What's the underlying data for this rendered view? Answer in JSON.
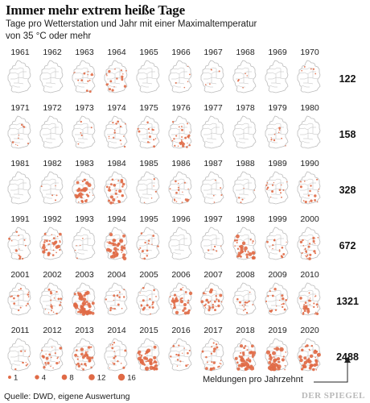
{
  "title": "Immer mehr extrem heiße Tage",
  "subtitle": "Tage pro Wetterstation und Jahr mit einer Maximaltemperatur von 35 °C oder mehr",
  "source": "Quelle: DWD, eigene Auswertung",
  "brand": "DER SPIEGEL",
  "decade_caption": "Meldungen pro Jahrzehnt",
  "colors": {
    "dot": "#e06a46",
    "map_fill": "#ffffff",
    "map_border": "#bcbcbc",
    "text": "#222222"
  },
  "chart_data": {
    "type": "small-multiples-dot-map",
    "legend": {
      "sizes": [
        1,
        4,
        8,
        12,
        16
      ]
    },
    "decades": [
      {
        "years": [
          "1961",
          "1962",
          "1963",
          "1964",
          "1965",
          "1966",
          "1967",
          "1968",
          "1969",
          "1970"
        ],
        "total": 122
      },
      {
        "years": [
          "1971",
          "1972",
          "1973",
          "1974",
          "1975",
          "1976",
          "1977",
          "1978",
          "1979",
          "1980"
        ],
        "total": 158
      },
      {
        "years": [
          "1981",
          "1982",
          "1983",
          "1984",
          "1985",
          "1986",
          "1987",
          "1988",
          "1989",
          "1990"
        ],
        "total": 328
      },
      {
        "years": [
          "1991",
          "1992",
          "1993",
          "1994",
          "1995",
          "1996",
          "1997",
          "1998",
          "1999",
          "2000"
        ],
        "total": 672
      },
      {
        "years": [
          "2001",
          "2002",
          "2003",
          "2004",
          "2005",
          "2006",
          "2007",
          "2008",
          "2009",
          "2010"
        ],
        "total": 1321
      },
      {
        "years": [
          "2011",
          "2012",
          "2013",
          "2014",
          "2015",
          "2016",
          "2017",
          "2018",
          "2019",
          "2020"
        ],
        "total": 2488
      }
    ],
    "year_intensity": {
      "1961": 0,
      "1962": 0,
      "1963": 3,
      "1964": 4,
      "1965": 0,
      "1966": 1,
      "1967": 1,
      "1968": 1,
      "1969": 0,
      "1970": 1,
      "1971": 2,
      "1972": 0,
      "1973": 1,
      "1974": 3,
      "1975": 3,
      "1976": 6,
      "1977": 0,
      "1978": 0,
      "1979": 2,
      "1980": 0,
      "1981": 0,
      "1982": 1,
      "1983": 8,
      "1984": 6,
      "1985": 1,
      "1986": 4,
      "1987": 1,
      "1988": 1,
      "1989": 3,
      "1990": 4,
      "1991": 3,
      "1992": 8,
      "1993": 1,
      "1994": 9,
      "1995": 3,
      "1996": 0,
      "1997": 1,
      "1998": 8,
      "1999": 3,
      "2000": 5,
      "2001": 3,
      "2002": 4,
      "2003": 12,
      "2004": 3,
      "2005": 4,
      "2006": 7,
      "2007": 6,
      "2008": 3,
      "2009": 4,
      "2010": 6,
      "2011": 2,
      "2012": 5,
      "2013": 7,
      "2014": 3,
      "2015": 10,
      "2016": 3,
      "2017": 5,
      "2018": 10,
      "2019": 10,
      "2020": 9
    }
  }
}
